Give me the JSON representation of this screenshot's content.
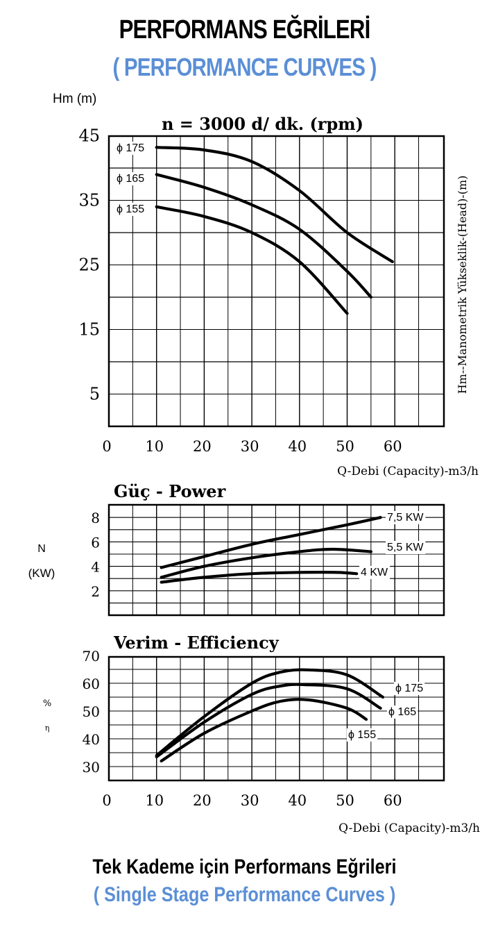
{
  "header": {
    "title_tr": "PERFORMANS EĞRİLERİ",
    "title_en": "( PERFORMANCE CURVES )"
  },
  "footer": {
    "title_tr": "Tek Kademe için Performans Eğrileri",
    "title_en": "( Single Stage Performance Curves )"
  },
  "colors": {
    "accent": "#5b8fd6",
    "ink": "#000000"
  },
  "chart_data": [
    {
      "type": "line",
      "title": "n = 3000 d/ dk.  (rpm)",
      "ylabel_top": "Hm (m)",
      "ylabel_side": "Hm--Manometrik Yükseklik-(Head)-(m)",
      "xlabel": "Q-Debi (Capacity)-m3/h",
      "xlim": [
        0,
        70
      ],
      "ylim": [
        0,
        45
      ],
      "xticks": [
        0,
        10,
        20,
        30,
        40,
        50,
        60
      ],
      "yticks": [
        5,
        15,
        25,
        35,
        45
      ],
      "grid": true,
      "series": [
        {
          "name": "ϕ 175",
          "x": [
            10,
            20,
            30,
            40,
            50,
            59.5
          ],
          "y": [
            43.2,
            42.8,
            41,
            36.5,
            30,
            25.5
          ]
        },
        {
          "name": "ϕ 165",
          "x": [
            10,
            20,
            30,
            40,
            50,
            55
          ],
          "y": [
            39,
            37,
            34.3,
            30.5,
            24,
            20
          ]
        },
        {
          "name": "ϕ 155",
          "x": [
            10,
            20,
            30,
            40,
            50
          ],
          "y": [
            34,
            32.5,
            30,
            25.5,
            17.5
          ]
        }
      ]
    },
    {
      "type": "line",
      "title": "Güç - Power",
      "ylabel": "N",
      "ylabel_unit": "(KW)",
      "xlim": [
        0,
        70
      ],
      "ylim": [
        0,
        9
      ],
      "yticks": [
        2,
        4,
        6,
        8
      ],
      "grid": true,
      "series": [
        {
          "name": "7,5 KW",
          "x": [
            11,
            20,
            30,
            40,
            50,
            57
          ],
          "y": [
            3.9,
            4.8,
            5.8,
            6.6,
            7.4,
            8.0
          ]
        },
        {
          "name": "5,5 KW",
          "x": [
            11,
            20,
            30,
            40,
            47,
            55
          ],
          "y": [
            3.1,
            4.0,
            4.7,
            5.2,
            5.4,
            5.2
          ]
        },
        {
          "name": "4 KW",
          "x": [
            11,
            20,
            30,
            40,
            48,
            52
          ],
          "y": [
            2.7,
            3.1,
            3.4,
            3.5,
            3.5,
            3.4
          ]
        }
      ]
    },
    {
      "type": "line",
      "title": "Verim - Efficiency",
      "ylabel": "%",
      "ylabel_sub": "η",
      "xlabel": "Q-Debi (Capacity)-m3/h",
      "xlim": [
        0,
        70
      ],
      "ylim": [
        25,
        70
      ],
      "xticks": [
        0,
        10,
        20,
        30,
        40,
        50,
        60
      ],
      "yticks": [
        30,
        40,
        50,
        60,
        70
      ],
      "grid": true,
      "series": [
        {
          "name": "ϕ 175",
          "x": [
            10,
            20,
            30,
            36,
            42,
            50,
            57.5
          ],
          "y": [
            34,
            48,
            60,
            64,
            64.8,
            63,
            55
          ]
        },
        {
          "name": "ϕ 165",
          "x": [
            10,
            20,
            30,
            36,
            41,
            50,
            57
          ],
          "y": [
            33.5,
            46,
            56,
            59,
            59.5,
            58,
            51
          ]
        },
        {
          "name": "ϕ 155",
          "x": [
            11,
            20,
            30,
            36,
            42,
            50,
            54
          ],
          "y": [
            32,
            42,
            50,
            53.5,
            54,
            51,
            47
          ]
        }
      ]
    }
  ]
}
